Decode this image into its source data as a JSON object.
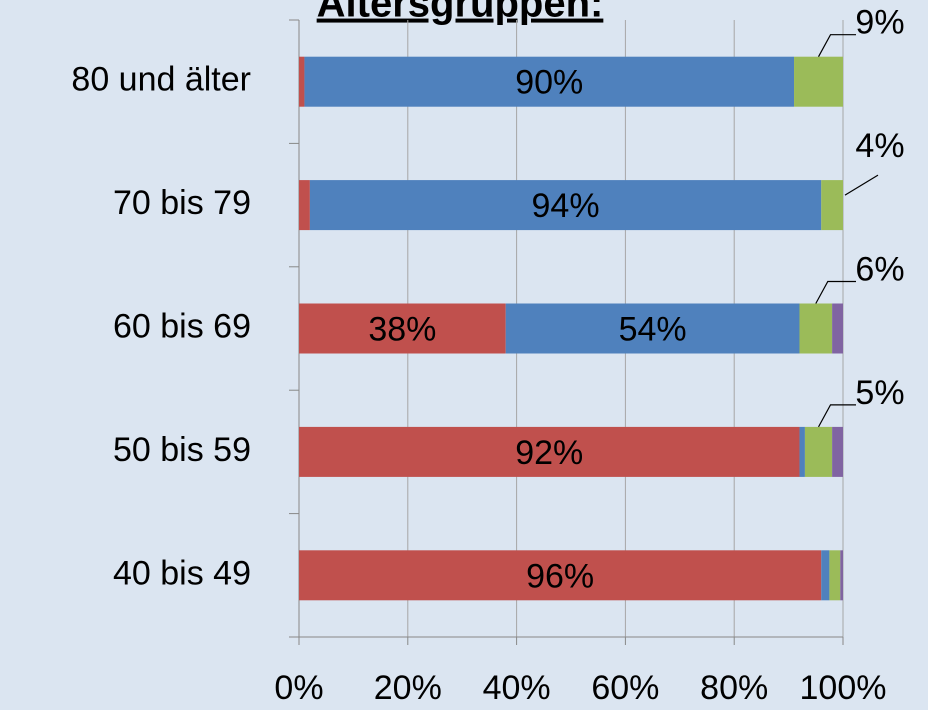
{
  "chart_data": {
    "type": "stacked-bar-horizontal",
    "title": "Altersgruppen:",
    "categories": [
      "80 und älter",
      "70 bis 79",
      "60 bis 69",
      "50 bis 59",
      "40 bis 49"
    ],
    "series": [
      {
        "color": "#c0504d",
        "values": [
          1,
          2,
          38,
          92,
          96
        ],
        "value_labels": [
          null,
          null,
          "38%",
          "92%",
          "96%"
        ]
      },
      {
        "color": "#4f81bd",
        "values": [
          90,
          94,
          54,
          1,
          1.5
        ],
        "value_labels": [
          "90%",
          "94%",
          "54%",
          null,
          null
        ]
      },
      {
        "color": "#9bbb59",
        "values": [
          9,
          4,
          6,
          5,
          2
        ],
        "value_labels": [
          "9%",
          "4%",
          "6%",
          "5%",
          null
        ]
      },
      {
        "color": "#8064a2",
        "values": [
          0,
          0,
          2,
          2,
          0.5
        ],
        "value_labels": [
          null,
          null,
          null,
          null,
          null
        ]
      }
    ],
    "xlim": [
      0,
      100
    ],
    "xticks": [
      {
        "value": 0,
        "label": "0%"
      },
      {
        "value": 20,
        "label": "20%"
      },
      {
        "value": 40,
        "label": "40%"
      },
      {
        "value": 60,
        "label": "60%"
      },
      {
        "value": 80,
        "label": "80%"
      },
      {
        "value": 100,
        "label": "100%"
      }
    ],
    "grid": true
  }
}
